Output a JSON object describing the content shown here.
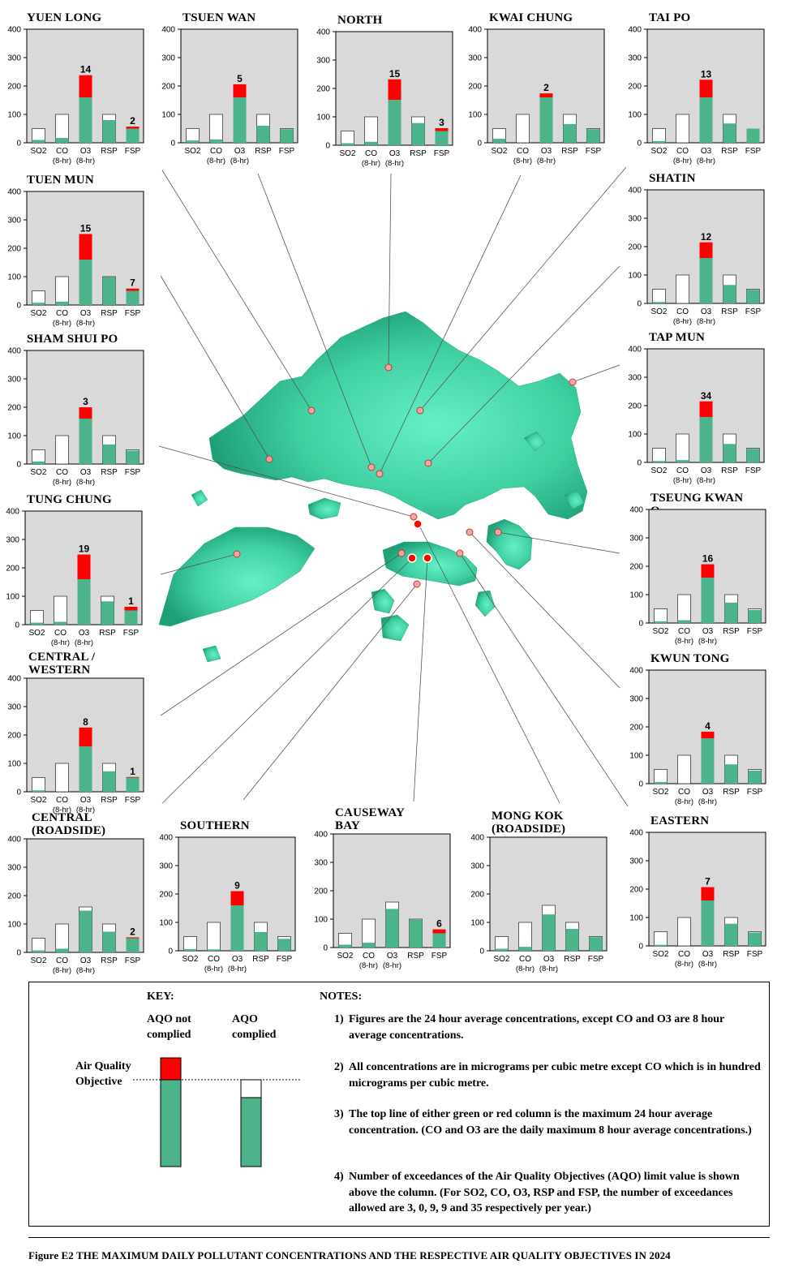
{
  "figure": {
    "caption": "Figure E2  THE MAXIMUM DAILY POLLUTANT CONCENTRATIONS AND THE RESPECTIVE AIR QUALITY OBJECTIVES IN 2024"
  },
  "colors": {
    "plot_bg": "#d9d9d9",
    "measured": "#4db38b",
    "exceed": "#ff0000",
    "aqo_outline": "#ffffff",
    "map_land": "#3cc99b",
    "marker": "#ff0000"
  },
  "key": {
    "title": "KEY:",
    "not_complied": "AQO not\ncomplied",
    "complied": "AQO\ncomplied",
    "aqo_label": "Air Quality\nObjective"
  },
  "notes": {
    "title": "NOTES:",
    "items": [
      {
        "num": "1)",
        "text": "Figures are the 24 hour average concentrations, except CO and O3 are 8 hour average concentrations."
      },
      {
        "num": "2)",
        "text": "All concentrations are in micrograms per cubic metre except CO which is in hundred micrograms per cubic metre."
      },
      {
        "num": "3)",
        "text": "The top line of either green or red column is the maximum 24 hour average concentration. (CO and O3 are the daily maximum 8 hour average concentrations.)"
      },
      {
        "num": "4)",
        "text": "Number of exceedances of the Air Quality Objectives (AQO) limit value is shown above the column. (For SO2, CO, O3, RSP and FSP, the number of exceedances allowed are 3, 0, 9, 9 and 35 respectively per year.)"
      }
    ]
  },
  "chart_data": {
    "type": "bar",
    "ylim": [
      0,
      400
    ],
    "yticks": [
      "0",
      "100",
      "200",
      "300",
      "400"
    ],
    "categories": [
      "SO2",
      "CO",
      "O3",
      "RSP",
      "FSP"
    ],
    "sublabels": [
      "",
      "(8-hr)",
      "(8-hr)",
      "",
      ""
    ],
    "aqo": [
      50,
      100,
      160,
      100,
      50
    ],
    "stations": [
      {
        "name": "YUEN LONG",
        "values": [
          10,
          17,
          238,
          80,
          57
        ],
        "exceedances": [
          null,
          null,
          "14",
          null,
          "2"
        ]
      },
      {
        "name": "TSUEN WAN",
        "values": [
          8,
          12,
          206,
          60,
          48
        ],
        "exceedances": [
          null,
          null,
          "5",
          null,
          null
        ]
      },
      {
        "name": "NORTH",
        "values": [
          7,
          12,
          232,
          78,
          60
        ],
        "exceedances": [
          null,
          null,
          "15",
          null,
          "3"
        ]
      },
      {
        "name": "KWAI CHUNG",
        "values": [
          14,
          0,
          174,
          66,
          48
        ],
        "exceedances": [
          null,
          null,
          "2",
          null,
          null
        ]
      },
      {
        "name": "TAI PO",
        "values": [
          6,
          0,
          222,
          68,
          50
        ],
        "exceedances": [
          null,
          null,
          "13",
          null,
          null
        ]
      },
      {
        "name": "TUEN MUN",
        "values": [
          8,
          12,
          250,
          99,
          58
        ],
        "exceedances": [
          null,
          null,
          "15",
          null,
          "7"
        ]
      },
      {
        "name": "SHATIN",
        "values": [
          5,
          0,
          215,
          65,
          48
        ],
        "exceedances": [
          null,
          null,
          "12",
          null,
          null
        ]
      },
      {
        "name": "SHAM SHUI PO",
        "values": [
          9,
          0,
          200,
          69,
          47
        ],
        "exceedances": [
          null,
          null,
          "3",
          null,
          null
        ]
      },
      {
        "name": "TAP MUN",
        "values": [
          5,
          8,
          215,
          65,
          48
        ],
        "exceedances": [
          null,
          null,
          "34",
          null,
          null
        ]
      },
      {
        "name": "TUNG CHUNG",
        "values": [
          7,
          10,
          247,
          82,
          63
        ],
        "exceedances": [
          null,
          null,
          "19",
          null,
          "1"
        ]
      },
      {
        "name": "TSEUNG KWAN O",
        "values": [
          6,
          10,
          207,
          72,
          46
        ],
        "exceedances": [
          null,
          null,
          "16",
          null,
          null
        ]
      },
      {
        "name": "CENTRAL /\nWESTERN",
        "values": [
          5,
          0,
          226,
          72,
          52
        ],
        "exceedances": [
          null,
          null,
          "8",
          null,
          "1"
        ]
      },
      {
        "name": "KWUN TONG",
        "values": [
          6,
          0,
          183,
          68,
          46
        ],
        "exceedances": [
          null,
          null,
          "4",
          null,
          null
        ]
      },
      {
        "name": "CENTRAL\n(ROADSIDE)",
        "values": [
          7,
          13,
          147,
          73,
          53
        ],
        "exceedances": [
          null,
          null,
          null,
          null,
          "2"
        ]
      },
      {
        "name": "SOUTHERN",
        "values": [
          6,
          5,
          210,
          66,
          42
        ],
        "exceedances": [
          null,
          null,
          "9",
          null,
          null
        ]
      },
      {
        "name": "CAUSEWAY BAY\n(ROADSIDE)",
        "values": [
          10,
          17,
          136,
          98,
          64
        ],
        "exceedances": [
          null,
          null,
          null,
          null,
          "6"
        ]
      },
      {
        "name": "MONG KOK\n(ROADSIDE)",
        "values": [
          7,
          14,
          128,
          77,
          48
        ],
        "exceedances": [
          null,
          null,
          null,
          null,
          null
        ]
      },
      {
        "name": "EASTERN",
        "values": [
          4,
          0,
          207,
          78,
          47
        ],
        "exceedances": [
          null,
          null,
          "7",
          null,
          null
        ]
      }
    ]
  }
}
